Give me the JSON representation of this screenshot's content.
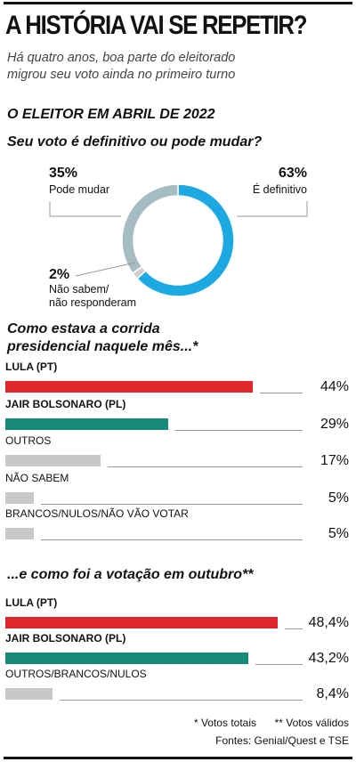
{
  "title": "A HISTÓRIA VAI SE REPETIR?",
  "subtitle": "Há quatro anos, boa parte do eleitorado\nmigrou seu voto ainda no primeiro turno",
  "section_title": "O ELEITOR EM ABRIL DE 2022",
  "footnotes": [
    "* Votos totais",
    "** Votos válidos"
  ],
  "source": "Fontes: Genial/Quest e TSE",
  "chart_data": [
    {
      "type": "donut",
      "title": "Seu voto é definitivo ou pode mudar?",
      "categories": [
        "É definitivo",
        "Não sabem/\nnão responderam",
        "Pode mudar"
      ],
      "values": [
        63,
        2,
        35
      ],
      "value_labels": [
        "63%",
        "2%",
        "35%"
      ],
      "colors": [
        "#1ca8e0",
        "#cfcfcf",
        "#a6bcc3"
      ]
    },
    {
      "type": "bar",
      "title": "Como estava a corrida\npresidencial naquele mês...*",
      "categories": [
        "LULA (PT)",
        "JAIR BOLSONARO (PL)",
        "OUTROS",
        "NÃO SABEM",
        "BRANCOS/NULOS/NÃO VÃO VOTAR"
      ],
      "values": [
        44,
        29,
        17,
        5,
        5
      ],
      "value_labels": [
        "44%",
        "29%",
        "17%",
        "5%",
        "5%"
      ],
      "colors": [
        "#e1262b",
        "#168a77",
        "#c8c8c8",
        "#c8c8c8",
        "#c8c8c8"
      ]
    },
    {
      "type": "bar",
      "title": "...e como foi a votação em outubro**",
      "categories": [
        "LULA (PT)",
        "JAIR BOLSONARO (PL)",
        "OUTROS/BRANCOS/NULOS"
      ],
      "values": [
        48.4,
        43.2,
        8.4
      ],
      "value_labels": [
        "48,4%",
        "43,2%",
        "8,4%"
      ],
      "colors": [
        "#e1262b",
        "#168a77",
        "#c8c8c8"
      ]
    }
  ]
}
